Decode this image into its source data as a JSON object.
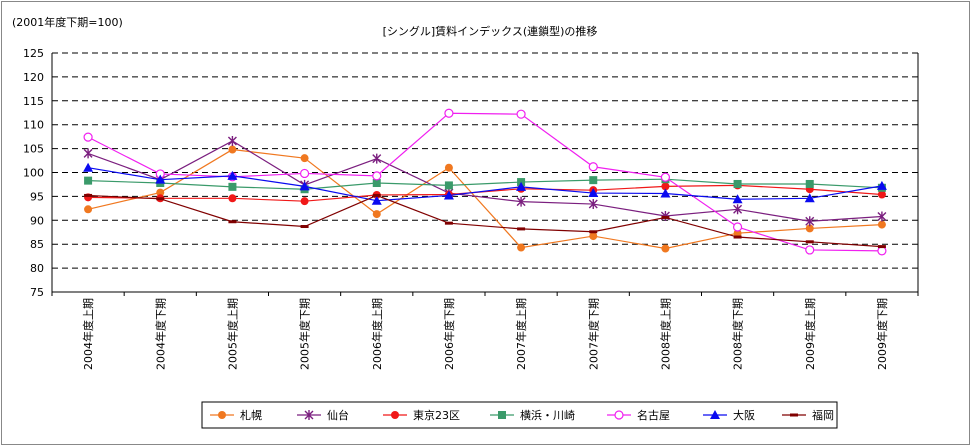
{
  "chart_data": {
    "type": "line",
    "title": "[シングル]賃料インデックス(連鎖型)の推移",
    "unit_label": "(2001年度下期=100)",
    "ylim": [
      75,
      125
    ],
    "yticks": [
      75,
      80,
      85,
      90,
      95,
      100,
      105,
      110,
      115,
      120,
      125
    ],
    "grid": true,
    "legend_placement": "bottom",
    "categories": [
      "2004年度上期",
      "2004年度下期",
      "2005年度上期",
      "2005年度下期",
      "2006年度上期",
      "2006年度下期",
      "2007年度上期",
      "2007年度下期",
      "2008年度上期",
      "2008年度下期",
      "2009年度上期",
      "2009年度下期"
    ],
    "series": [
      {
        "name": "札幌",
        "color": "#f07820",
        "marker": "circle",
        "values": [
          92.3,
          95.8,
          104.8,
          103.0,
          91.3,
          101.0,
          84.3,
          86.7,
          84.1,
          87.3,
          88.3,
          89.1
        ]
      },
      {
        "name": "仙台",
        "color": "#7b1f7f",
        "marker": "asterisk",
        "values": [
          104.0,
          98.5,
          106.6,
          97.4,
          102.9,
          95.7,
          93.9,
          93.4,
          90.9,
          92.3,
          89.8,
          90.8
        ]
      },
      {
        "name": "東京23区",
        "color": "#f01818",
        "marker": "circle",
        "values": [
          94.8,
          94.6,
          94.6,
          94.0,
          95.3,
          95.4,
          96.6,
          96.3,
          97.1,
          97.3,
          96.5,
          95.4
        ]
      },
      {
        "name": "横浜・川崎",
        "color": "#3a9a6a",
        "marker": "square",
        "values": [
          98.3,
          97.8,
          97.0,
          96.5,
          97.8,
          97.3,
          98.0,
          98.4,
          98.6,
          97.6,
          97.6,
          96.8
        ]
      },
      {
        "name": "名古屋",
        "color": "#f020f0",
        "marker": "open-circle",
        "values": [
          107.4,
          99.7,
          99.1,
          99.8,
          99.3,
          112.4,
          112.2,
          101.2,
          99.0,
          88.6,
          83.8,
          83.6
        ]
      },
      {
        "name": "大阪",
        "color": "#0a0af0",
        "marker": "triangle",
        "values": [
          101.0,
          98.5,
          99.3,
          97.1,
          94.1,
          95.2,
          97.0,
          95.7,
          95.6,
          94.4,
          94.6,
          97.2
        ]
      },
      {
        "name": "福岡",
        "color": "#800000",
        "marker": "dash",
        "values": [
          95.2,
          94.5,
          89.7,
          88.7,
          95.2,
          89.4,
          88.2,
          87.6,
          90.6,
          86.5,
          85.5,
          84.5
        ]
      }
    ]
  }
}
